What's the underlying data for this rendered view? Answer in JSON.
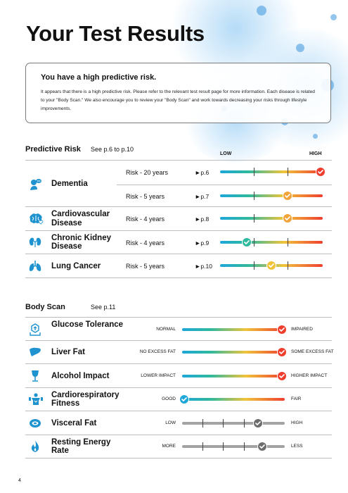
{
  "title": "Your Test Results",
  "alert": {
    "heading": "You have a high predictive risk.",
    "body": "It appears that there is a high predictive risk. Please refer to the relevant test result page for more information. Each disease is related to your \"Body Scan.\"  We also encourage you to review your \"Body Scan\" and work towards decreasing your risks through lifestyle improvements."
  },
  "predictive": {
    "heading": "Predictive Risk",
    "see": "See p.6 to p.10",
    "scale_low": "LOW",
    "scale_high": "HIGH",
    "rows": [
      {
        "name": "Dementia",
        "icon": "dementia-icon",
        "sub": [
          {
            "period": "Risk - 20 years",
            "page": "►p.6",
            "level": 0.98,
            "color": "#ef3e2e"
          },
          {
            "period": "Risk - 5 years",
            "page": "►p.7",
            "level": 0.66,
            "color": "#f0a43a"
          }
        ]
      },
      {
        "name": "Cardiovascular Disease",
        "icon": "brain-heart-icon",
        "sub": [
          {
            "period": "Risk - 4 years",
            "page": "►p.8",
            "level": 0.66,
            "color": "#f0a43a"
          }
        ]
      },
      {
        "name": "Chronic Kidney Disease",
        "icon": "kidney-icon",
        "sub": [
          {
            "period": "Risk - 4 years",
            "page": "►p.9",
            "level": 0.26,
            "color": "#2fb99d"
          }
        ]
      },
      {
        "name": "Lung Cancer",
        "icon": "lungs-icon",
        "sub": [
          {
            "period": "Risk - 5 years",
            "page": "►p.10",
            "level": 0.5,
            "color": "#f0c43a"
          }
        ]
      }
    ]
  },
  "bodyscan": {
    "heading": "Body Scan",
    "see": "See p.11",
    "rows": [
      {
        "name": "Glucose Tolerance",
        "icon": "glucose-icon",
        "left": "NORMAL",
        "right": "IMPAIRED",
        "level": 0.97,
        "color": "#ef3e2e",
        "style": "color"
      },
      {
        "name": "Liver Fat",
        "icon": "liver-icon",
        "left": "NO EXCESS FAT",
        "right": "SOME EXCESS FAT",
        "level": 0.97,
        "color": "#ef3e2e",
        "style": "color"
      },
      {
        "name": "Alcohol Impact",
        "icon": "glass-icon",
        "left": "LOWER IMPACT",
        "right": "HIGHER IMPACT",
        "level": 0.97,
        "color": "#ef3e2e",
        "style": "color"
      },
      {
        "name": "Cardiorespiratory Fitness",
        "icon": "fitness-icon",
        "left": "GOOD",
        "right": "FAIR",
        "level": 0.02,
        "color": "#1ea7d8",
        "style": "color"
      },
      {
        "name": "Visceral Fat",
        "icon": "visceral-fat-icon",
        "left": "LOW",
        "right": "HIGH",
        "level": 0.74,
        "color": "#6d6d6d",
        "style": "gray"
      },
      {
        "name": "Resting Energy Rate",
        "icon": "flame-icon",
        "left": "MORE",
        "right": "LESS",
        "level": 0.78,
        "color": "#6d6d6d",
        "style": "gray"
      }
    ]
  },
  "page_number": "4"
}
